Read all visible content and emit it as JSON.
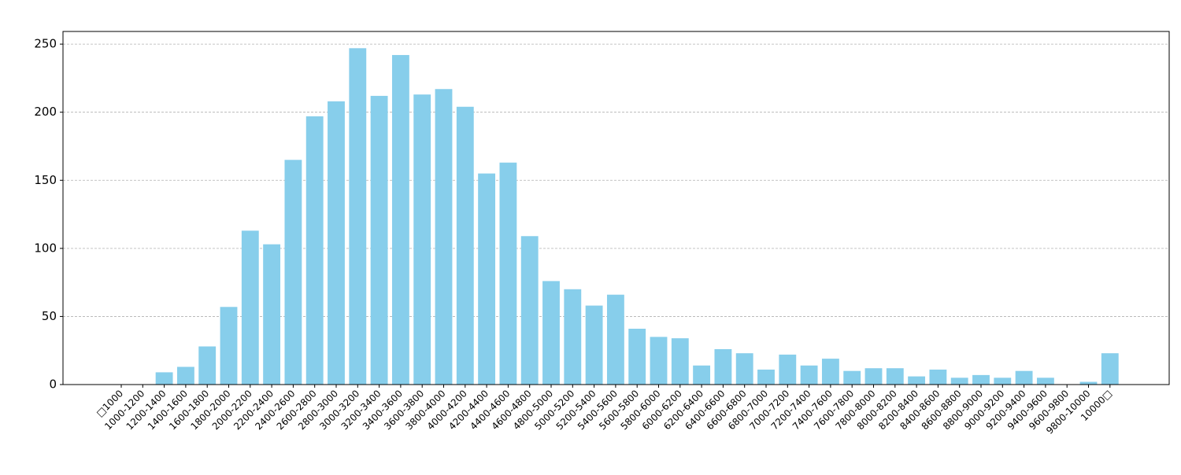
{
  "chart_data": {
    "type": "bar",
    "categories": [
      "□1000",
      "1000-1200",
      "1200-1400",
      "1400-1600",
      "1600-1800",
      "1800-2000",
      "2000-2200",
      "2200-2400",
      "2400-2600",
      "2600-2800",
      "2800-3000",
      "3000-3200",
      "3200-3400",
      "3400-3600",
      "3600-3800",
      "3800-4000",
      "4000-4200",
      "4200-4400",
      "4400-4600",
      "4600-4800",
      "4800-5000",
      "5000-5200",
      "5200-5400",
      "5400-5600",
      "5600-5800",
      "5800-6000",
      "6000-6200",
      "6200-6400",
      "6400-6600",
      "6600-6800",
      "6800-7000",
      "7000-7200",
      "7200-7400",
      "7400-7600",
      "7600-7800",
      "7800-8000",
      "8000-8200",
      "8200-8400",
      "8400-8600",
      "8600-8800",
      "8800-9000",
      "9000-9200",
      "9200-9400",
      "9400-9600",
      "9600-9800",
      "9800-10000",
      "10000□"
    ],
    "values": [
      0,
      0,
      9,
      13,
      28,
      57,
      113,
      103,
      165,
      197,
      208,
      247,
      212,
      242,
      213,
      217,
      204,
      155,
      163,
      109,
      76,
      70,
      58,
      66,
      41,
      35,
      34,
      14,
      26,
      23,
      11,
      22,
      14,
      19,
      10,
      12,
      12,
      6,
      11,
      5,
      7,
      5,
      10,
      5,
      0,
      2,
      23
    ],
    "color": "#87ceeb",
    "ylim": [
      0,
      259.3
    ],
    "yticks": [
      0,
      50,
      100,
      150,
      200,
      250
    ],
    "grid": true
  }
}
